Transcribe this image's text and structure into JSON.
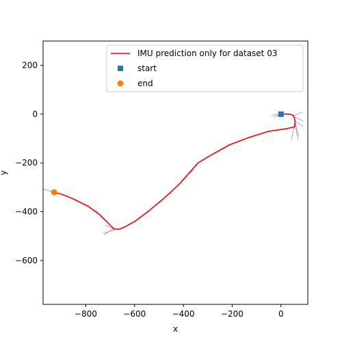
{
  "chart_data": {
    "type": "line",
    "title": "",
    "xlabel": "x",
    "ylabel": "y",
    "xlim": [
      -975,
      110
    ],
    "ylim": [
      -780,
      300
    ],
    "xticks": [
      -800,
      -600,
      -400,
      -200,
      0
    ],
    "yticks": [
      200,
      0,
      -200,
      -400,
      -600
    ],
    "xtick_labels": [
      "−800",
      "−600",
      "−400",
      "−200",
      "0"
    ],
    "ytick_labels": [
      "200",
      "0",
      "−200",
      "−400",
      "−600"
    ],
    "grid": false,
    "legend_position": "top-right",
    "series": [
      {
        "name": "IMU prediction only for dataset 03",
        "kind": "line",
        "color": "#ff0000",
        "points": [
          [
            0,
            0
          ],
          [
            15,
            1
          ],
          [
            35,
            0
          ],
          [
            48,
            -4
          ],
          [
            55,
            -15
          ],
          [
            58,
            -32
          ],
          [
            55,
            -52
          ],
          [
            20,
            -60
          ],
          [
            -50,
            -70
          ],
          [
            -130,
            -95
          ],
          [
            -210,
            -125
          ],
          [
            -300,
            -175
          ],
          [
            -340,
            -200
          ],
          [
            -380,
            -245
          ],
          [
            -420,
            -290
          ],
          [
            -480,
            -345
          ],
          [
            -540,
            -395
          ],
          [
            -600,
            -440
          ],
          [
            -640,
            -462
          ],
          [
            -665,
            -472
          ],
          [
            -685,
            -470
          ],
          [
            -710,
            -445
          ],
          [
            -740,
            -415
          ],
          [
            -790,
            -378
          ],
          [
            -850,
            -348
          ],
          [
            -900,
            -328
          ],
          [
            -930,
            -320
          ]
        ]
      },
      {
        "name": "start",
        "kind": "marker",
        "marker": "square",
        "color": "#1f77b4",
        "points": [
          [
            0,
            0
          ]
        ]
      },
      {
        "name": "end",
        "kind": "marker",
        "marker": "circle",
        "color": "#ff7f0e",
        "points": [
          [
            -930,
            -320
          ]
        ]
      }
    ],
    "orientation_arrows": {
      "color": "#6a6ae8",
      "segments": [
        [
          [
            0,
            0
          ],
          [
            -40,
            -4
          ]
        ],
        [
          [
            0,
            0
          ],
          [
            -28,
            -12
          ]
        ],
        [
          [
            48,
            -8
          ],
          [
            88,
            8
          ]
        ],
        [
          [
            48,
            -8
          ],
          [
            92,
            -28
          ]
        ],
        [
          [
            55,
            -25
          ],
          [
            90,
            -50
          ]
        ],
        [
          [
            58,
            -32
          ],
          [
            72,
            -90
          ]
        ],
        [
          [
            58,
            -40
          ],
          [
            70,
            -105
          ]
        ],
        [
          [
            58,
            -40
          ],
          [
            42,
            -105
          ]
        ],
        [
          [
            -340,
            -200
          ],
          [
            -355,
            -215
          ]
        ],
        [
          [
            -375,
            -245
          ],
          [
            -360,
            -228
          ]
        ],
        [
          [
            -680,
            -475
          ],
          [
            -720,
            -455
          ]
        ],
        [
          [
            -680,
            -475
          ],
          [
            -730,
            -488
          ]
        ],
        [
          [
            -690,
            -472
          ],
          [
            -725,
            -495
          ]
        ],
        [
          [
            -705,
            -450
          ],
          [
            -740,
            -420
          ]
        ],
        [
          [
            -745,
            -410
          ],
          [
            -760,
            -392
          ]
        ],
        [
          [
            -930,
            -320
          ],
          [
            -975,
            -307
          ]
        ]
      ]
    }
  }
}
